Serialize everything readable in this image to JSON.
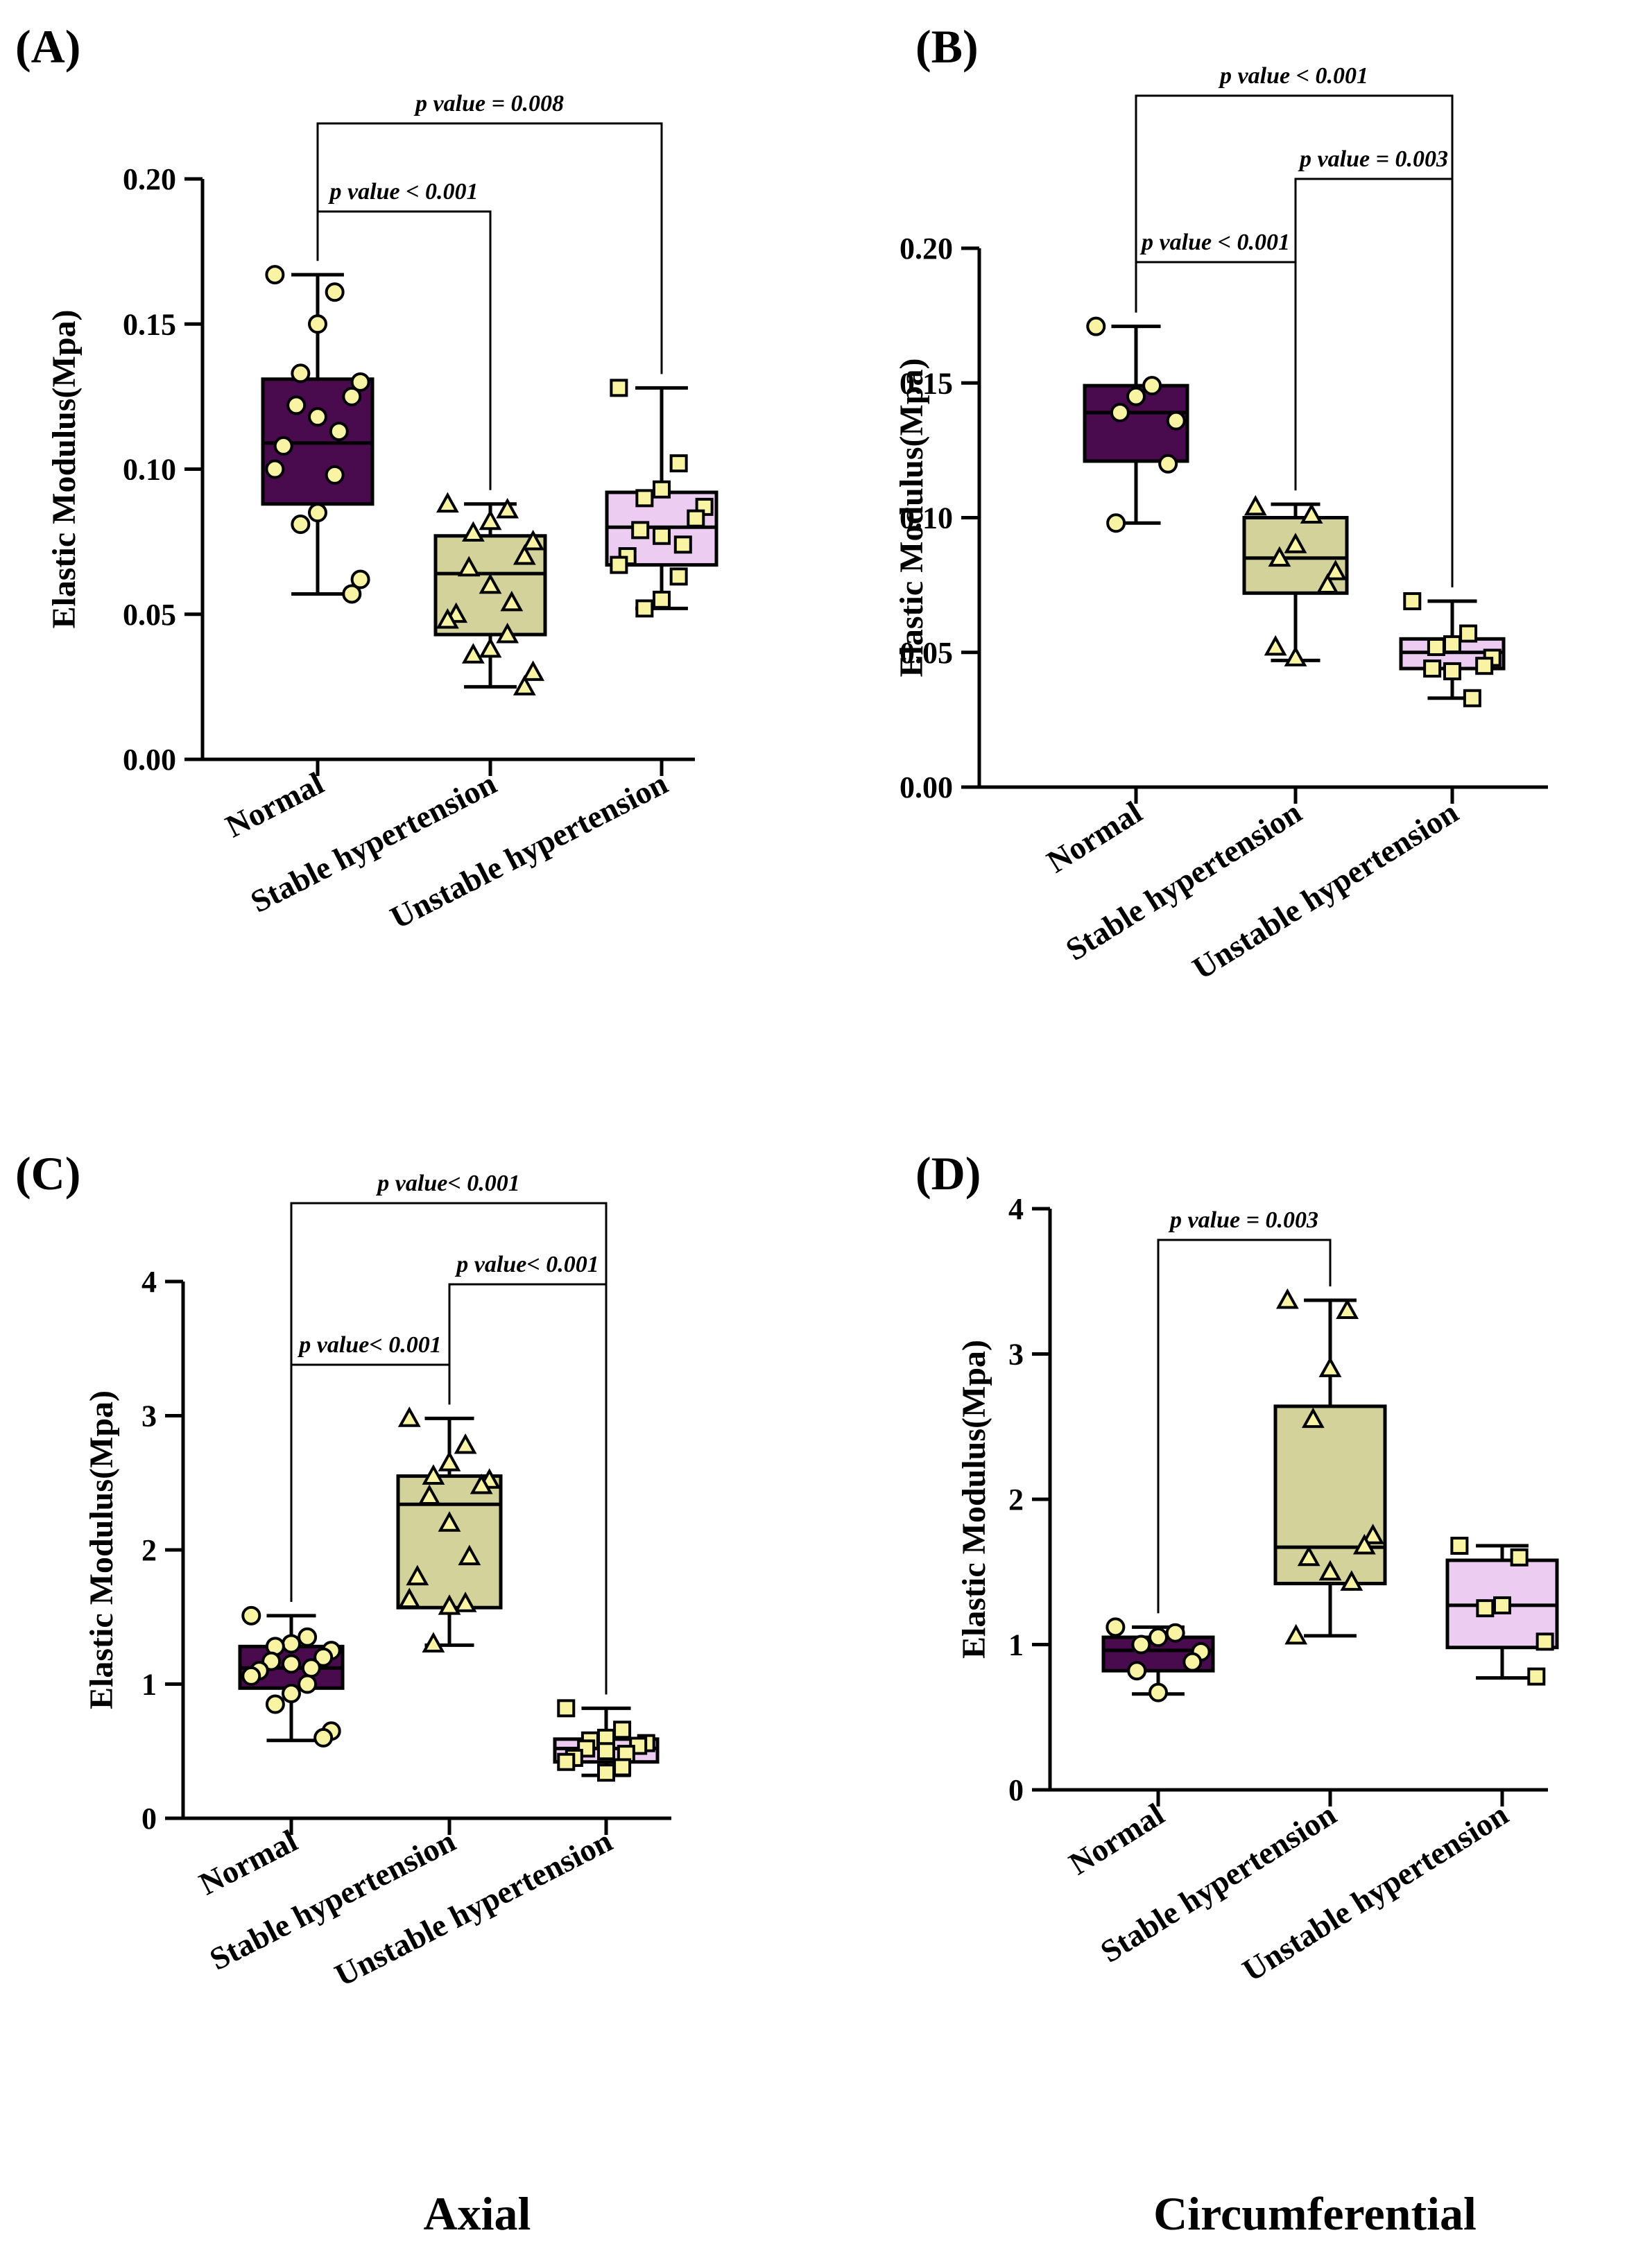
{
  "figure_labels": {
    "bottom_left": "Axial",
    "bottom_right": "Circumferential"
  },
  "colors": {
    "normal": "#4a0a4e",
    "stable": "#d4d29b",
    "unstable": "#edccf2",
    "dot_fill": "#f8f4a4",
    "line": "#000000"
  },
  "chart_data": [
    {
      "panel": "(A)",
      "type": "box",
      "ylabel": "Elastic Modulus(Mpa)",
      "ylim": [
        0,
        0.2
      ],
      "yticks": [
        0,
        0.05,
        0.1,
        0.15,
        0.2
      ],
      "ytick_labels": [
        "0.00",
        "0.05",
        "0.10",
        "0.15",
        "0.20"
      ],
      "categories": [
        "Normal",
        "Stable hypertension",
        "Unstable hypertension"
      ],
      "boxes": [
        {
          "min": 0.057,
          "q1": 0.088,
          "median": 0.109,
          "q3": 0.131,
          "max": 0.167,
          "points": [
            0.167,
            0.161,
            0.15,
            0.133,
            0.13,
            0.125,
            0.122,
            0.118,
            0.113,
            0.108,
            0.1,
            0.098,
            0.085,
            0.081,
            0.062,
            0.057
          ]
        },
        {
          "min": 0.025,
          "q1": 0.043,
          "median": 0.064,
          "q3": 0.077,
          "max": 0.088,
          "points": [
            0.088,
            0.086,
            0.082,
            0.078,
            0.075,
            0.07,
            0.066,
            0.06,
            0.054,
            0.05,
            0.048,
            0.043,
            0.038,
            0.036,
            0.03,
            0.025
          ]
        },
        {
          "min": 0.052,
          "q1": 0.067,
          "median": 0.08,
          "q3": 0.092,
          "max": 0.128,
          "points": [
            0.128,
            0.102,
            0.093,
            0.09,
            0.087,
            0.083,
            0.079,
            0.077,
            0.074,
            0.07,
            0.067,
            0.063,
            0.055,
            0.052
          ]
        }
      ],
      "markers": [
        "circle",
        "triangle",
        "square"
      ],
      "comparisons": [
        {
          "from": 0,
          "to": 1,
          "label": "p value < 0.001"
        },
        {
          "from": 0,
          "to": 2,
          "label": "p value = 0.008"
        }
      ]
    },
    {
      "panel": "(B)",
      "type": "box",
      "ylabel": "Elastic Modulus(Mpa)",
      "ylim": [
        0,
        0.2
      ],
      "yticks": [
        0,
        0.05,
        0.1,
        0.15,
        0.2
      ],
      "ytick_labels": [
        "0.00",
        "0.05",
        "0.10",
        "0.15",
        "0.20"
      ],
      "categories": [
        "Normal",
        "Stable hypertension",
        "Unstable hypertension"
      ],
      "boxes": [
        {
          "min": 0.098,
          "q1": 0.121,
          "median": 0.139,
          "q3": 0.149,
          "max": 0.171,
          "points": [
            0.171,
            0.149,
            0.145,
            0.139,
            0.136,
            0.12,
            0.098
          ]
        },
        {
          "min": 0.047,
          "q1": 0.072,
          "median": 0.085,
          "q3": 0.1,
          "max": 0.105,
          "points": [
            0.104,
            0.101,
            0.09,
            0.085,
            0.08,
            0.075,
            0.052,
            0.048
          ]
        },
        {
          "min": 0.033,
          "q1": 0.044,
          "median": 0.05,
          "q3": 0.055,
          "max": 0.069,
          "points": [
            0.069,
            0.057,
            0.053,
            0.052,
            0.048,
            0.045,
            0.044,
            0.043,
            0.033
          ]
        }
      ],
      "markers": [
        "circle",
        "triangle",
        "square"
      ],
      "comparisons": [
        {
          "from": 0,
          "to": 1,
          "label": "p value < 0.001"
        },
        {
          "from": 1,
          "to": 2,
          "label": "p value = 0.003"
        },
        {
          "from": 0,
          "to": 2,
          "label": "p value < 0.001"
        }
      ]
    },
    {
      "panel": "(C)",
      "type": "box",
      "ylabel": "Elastic Modulus(Mpa)",
      "ylim": [
        0,
        4
      ],
      "yticks": [
        0,
        1,
        2,
        3,
        4
      ],
      "ytick_labels": [
        "0",
        "1",
        "2",
        "3",
        "4"
      ],
      "categories": [
        "Normal",
        "Stable hypertension",
        "Unstable hypertension"
      ],
      "boxes": [
        {
          "min": 0.58,
          "q1": 0.97,
          "median": 1.12,
          "q3": 1.28,
          "max": 1.51,
          "points": [
            1.51,
            1.35,
            1.3,
            1.28,
            1.25,
            1.2,
            1.17,
            1.15,
            1.12,
            1.1,
            1.06,
            1.0,
            0.93,
            0.85,
            0.65,
            0.6
          ]
        },
        {
          "min": 1.29,
          "q1": 1.57,
          "median": 2.34,
          "q3": 2.55,
          "max": 2.98,
          "points": [
            2.98,
            2.78,
            2.65,
            2.55,
            2.52,
            2.48,
            2.4,
            2.2,
            1.95,
            1.8,
            1.63,
            1.6,
            1.58,
            1.3
          ]
        },
        {
          "min": 0.32,
          "q1": 0.42,
          "median": 0.52,
          "q3": 0.59,
          "max": 0.82,
          "points": [
            0.82,
            0.66,
            0.6,
            0.58,
            0.56,
            0.54,
            0.52,
            0.5,
            0.48,
            0.45,
            0.42,
            0.38,
            0.34
          ]
        }
      ],
      "markers": [
        "circle",
        "triangle",
        "square"
      ],
      "comparisons": [
        {
          "from": 0,
          "to": 1,
          "label": "p value< 0.001"
        },
        {
          "from": 1,
          "to": 2,
          "label": "p value< 0.001"
        },
        {
          "from": 0,
          "to": 2,
          "label": "p value< 0.001"
        }
      ]
    },
    {
      "panel": "(D)",
      "type": "box",
      "ylabel": "Elastic Modulus(Mpa)",
      "ylim": [
        0,
        4
      ],
      "yticks": [
        0,
        1,
        2,
        3,
        4
      ],
      "ytick_labels": [
        "0",
        "1",
        "2",
        "3",
        "4"
      ],
      "categories": [
        "Normal",
        "Stable hypertension",
        "Unstable hypertension"
      ],
      "boxes": [
        {
          "min": 0.66,
          "q1": 0.82,
          "median": 0.96,
          "q3": 1.05,
          "max": 1.12,
          "points": [
            1.12,
            1.08,
            1.05,
            1.0,
            0.95,
            0.88,
            0.82,
            0.67
          ]
        },
        {
          "min": 1.06,
          "q1": 1.42,
          "median": 1.67,
          "q3": 2.64,
          "max": 3.37,
          "points": [
            3.37,
            3.3,
            2.9,
            2.55,
            1.75,
            1.68,
            1.6,
            1.5,
            1.43,
            1.06
          ]
        },
        {
          "min": 0.77,
          "q1": 0.98,
          "median": 1.27,
          "q3": 1.58,
          "max": 1.68,
          "points": [
            1.68,
            1.6,
            1.27,
            1.25,
            1.02,
            0.78
          ]
        }
      ],
      "markers": [
        "circle",
        "triangle",
        "square"
      ],
      "comparisons": [
        {
          "from": 0,
          "to": 1,
          "label": "p value = 0.003"
        }
      ]
    }
  ]
}
